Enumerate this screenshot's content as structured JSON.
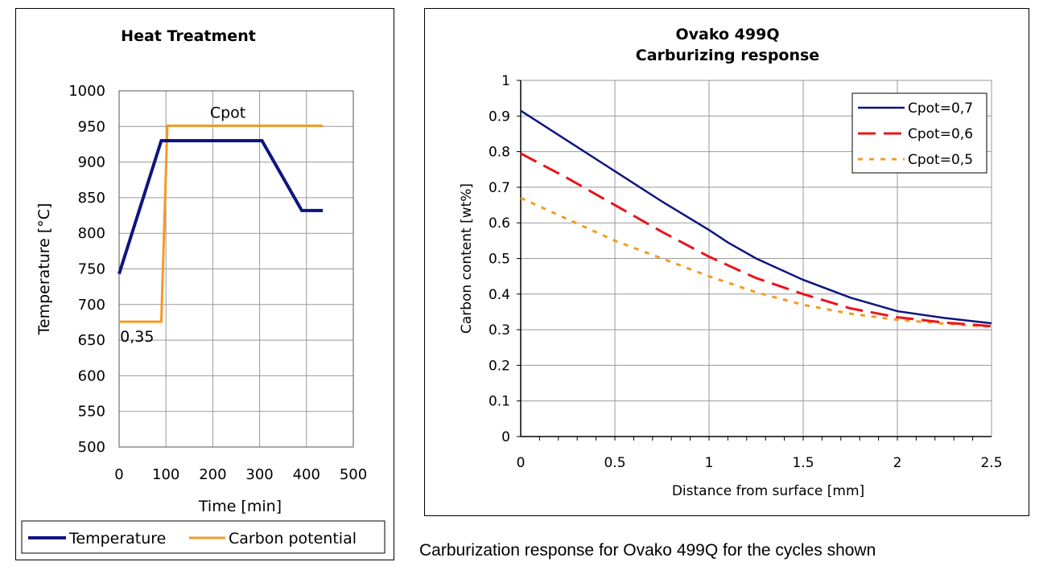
{
  "caption": "Carburization response for Ovako 499Q for the cycles shown",
  "colors": {
    "navy": "#0d1580",
    "orange": "#f59a23",
    "red": "#e8141c",
    "grid": "#999999"
  },
  "chart_data": [
    {
      "type": "line",
      "title": "Heat Treatment",
      "xlabel": "Time [min]",
      "ylabel": "Temperature [°C]",
      "xlim": [
        0,
        500
      ],
      "ylim": [
        500,
        1000
      ],
      "xticks": [
        "0",
        "100",
        "200",
        "300",
        "400",
        "500"
      ],
      "yticks": [
        "500",
        "550",
        "600",
        "650",
        "700",
        "750",
        "800",
        "850",
        "900",
        "950",
        "1000"
      ],
      "grid": true,
      "legend_position": "bottom",
      "annotations": [
        "Cpot",
        "0,35"
      ],
      "series": [
        {
          "name": "Temperature",
          "color": "#0d1580",
          "x": [
            0,
            90,
            305,
            390,
            435
          ],
          "y": [
            743,
            930,
            930,
            832,
            832
          ]
        },
        {
          "name": "Carbon potential",
          "color": "#f59a23",
          "x": [
            0,
            90,
            103,
            435
          ],
          "y": [
            676,
            676,
            951,
            951
          ]
        }
      ]
    },
    {
      "type": "line",
      "title": "Ovako 499Q",
      "subtitle": "Carburizing response",
      "xlabel": "Distance from surface [mm]",
      "ylabel": "Carbon content [wt%]",
      "xlim": [
        0,
        2.5
      ],
      "ylim": [
        0,
        1
      ],
      "xticks": [
        "0",
        "0.5",
        "1",
        "1.5",
        "2",
        "2.5"
      ],
      "yticks": [
        "0",
        "0.1",
        "0.2",
        "0.3",
        "0.4",
        "0.5",
        "0.6",
        "0.7",
        "0.8",
        "0.9",
        "1"
      ],
      "grid": true,
      "legend_position": "top-right",
      "series": [
        {
          "name": "Cpot=0,7",
          "color": "#0d1580",
          "dash": "solid",
          "x": [
            0,
            0.25,
            0.5,
            0.75,
            1.0,
            1.1,
            1.25,
            1.5,
            1.75,
            2.0,
            2.25,
            2.5
          ],
          "y": [
            0.915,
            0.83,
            0.745,
            0.66,
            0.58,
            0.545,
            0.5,
            0.44,
            0.39,
            0.352,
            0.333,
            0.318
          ]
        },
        {
          "name": "Cpot=0,6",
          "color": "#e8141c",
          "dash": "dashed",
          "x": [
            0,
            0.25,
            0.5,
            0.75,
            1.0,
            1.25,
            1.5,
            1.75,
            2.0,
            2.25,
            2.5
          ],
          "y": [
            0.795,
            0.725,
            0.65,
            0.575,
            0.505,
            0.445,
            0.4,
            0.36,
            0.335,
            0.32,
            0.31
          ]
        },
        {
          "name": "Cpot=0,5",
          "color": "#f59a23",
          "dash": "dotted",
          "x": [
            0,
            0.25,
            0.5,
            0.75,
            1.0,
            1.25,
            1.5,
            1.75,
            2.0,
            2.25,
            2.5
          ],
          "y": [
            0.67,
            0.61,
            0.55,
            0.5,
            0.45,
            0.405,
            0.37,
            0.345,
            0.328,
            0.317,
            0.308
          ]
        }
      ]
    }
  ]
}
